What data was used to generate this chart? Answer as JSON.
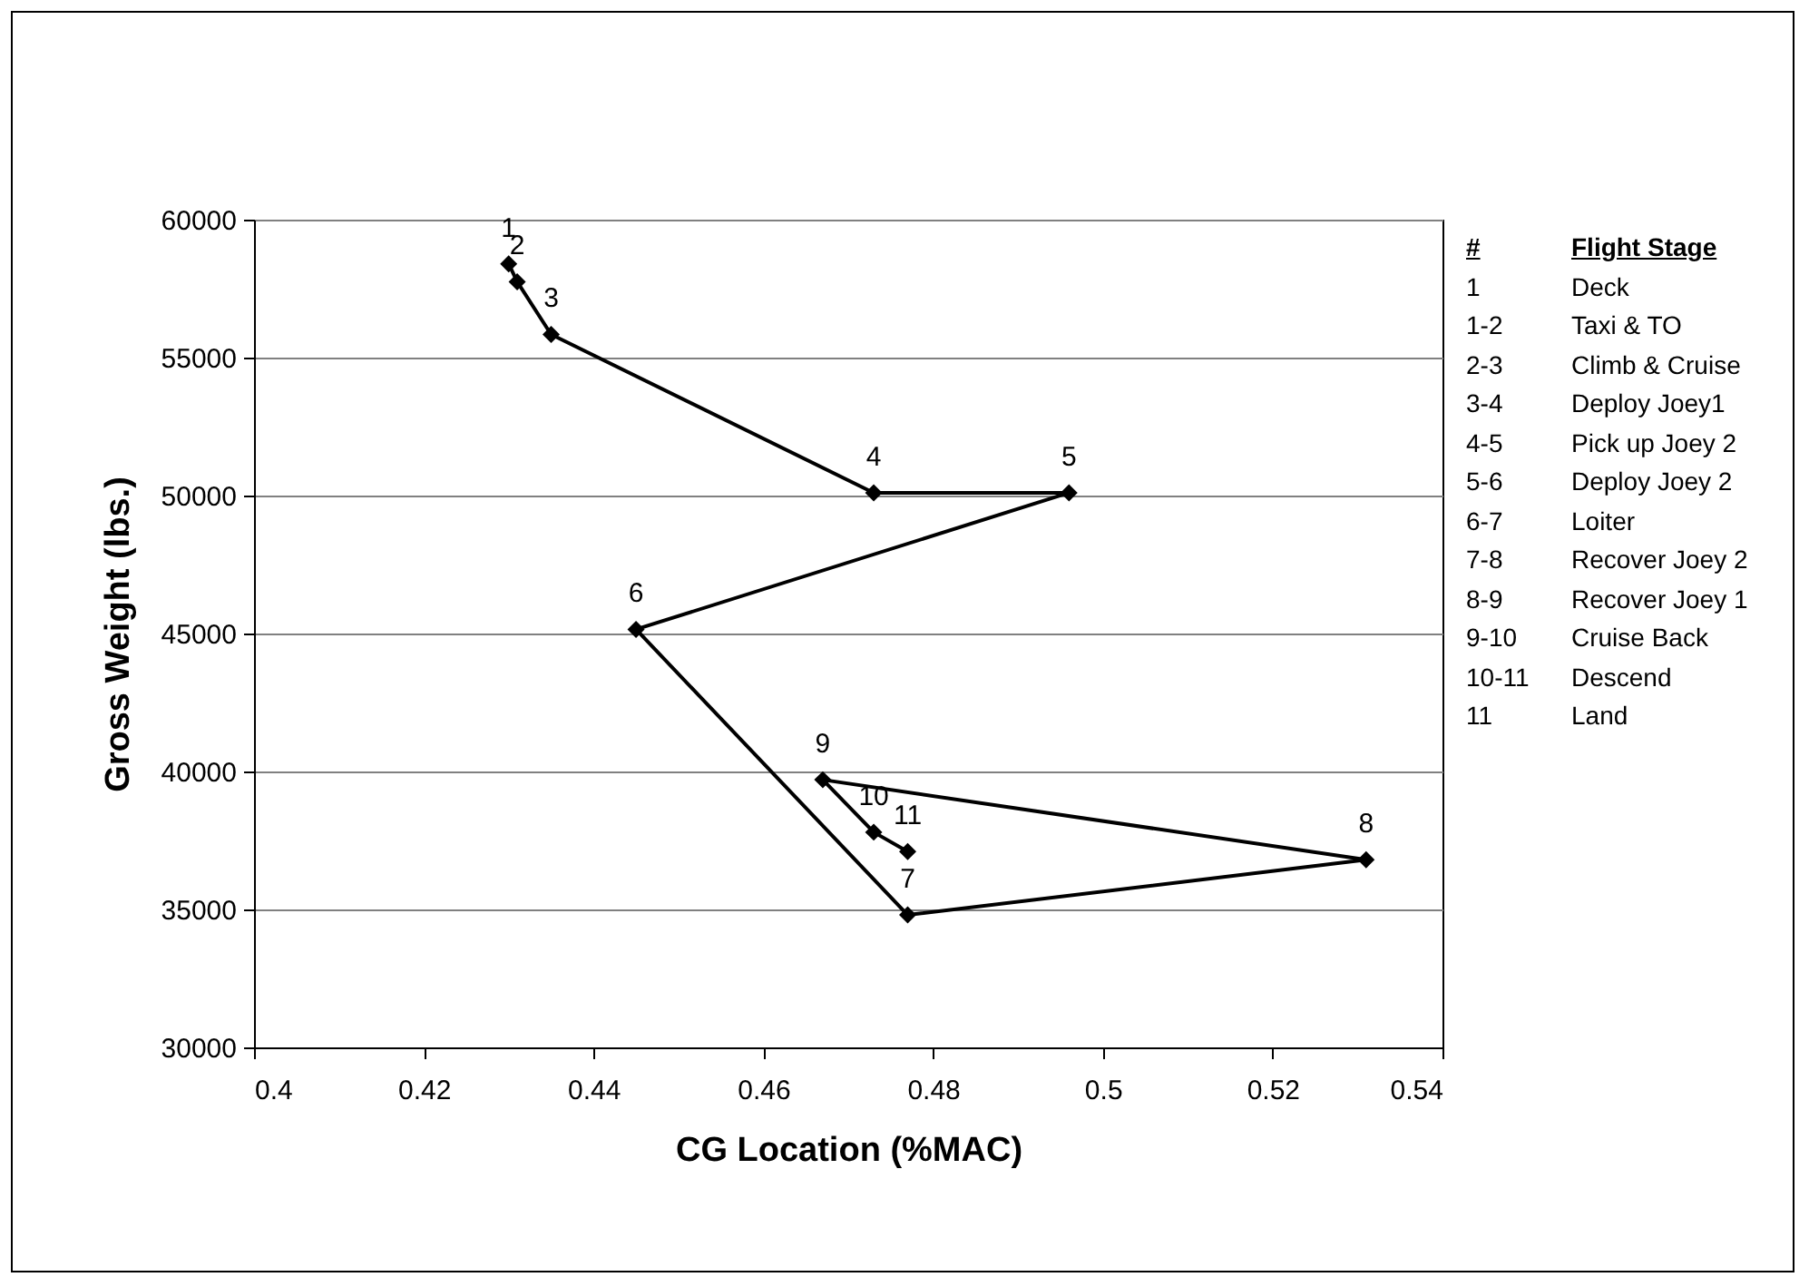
{
  "chart_data": {
    "type": "line",
    "xlabel": "CG Location (%MAC)",
    "ylabel": "Gross Weight (lbs.)",
    "x": [
      0.43,
      0.431,
      0.435,
      0.473,
      0.496,
      0.445,
      0.477,
      0.531,
      0.467,
      0.473,
      0.477
    ],
    "series": [
      {
        "color": "#000000",
        "values": [
          58400,
          57750,
          55840,
          50100,
          50100,
          45150,
          34800,
          36800,
          39700,
          37800,
          37100
        ]
      }
    ],
    "marker": "diamond",
    "line_style": "solid",
    "grid": "y",
    "legend": false,
    "xlim": [
      0.4,
      0.54
    ],
    "xticks": [
      0.4,
      0.42,
      0.44,
      0.46,
      0.48,
      0.5,
      0.52,
      0.54
    ],
    "ylim": [
      30000,
      60000
    ],
    "yticks": [
      30000,
      35000,
      40000,
      45000,
      50000,
      55000,
      60000
    ],
    "annotations": [
      {
        "text": "1",
        "x": 0.43,
        "y": 58400
      },
      {
        "text": "2",
        "x": 0.431,
        "y": 57750
      },
      {
        "text": "3",
        "x": 0.435,
        "y": 55840
      },
      {
        "text": "4",
        "x": 0.473,
        "y": 50100
      },
      {
        "text": "5",
        "x": 0.496,
        "y": 50100
      },
      {
        "text": "6",
        "x": 0.445,
        "y": 45150
      },
      {
        "text": "7",
        "x": 0.477,
        "y": 34800
      },
      {
        "text": "8",
        "x": 0.531,
        "y": 36800
      },
      {
        "text": "9",
        "x": 0.467,
        "y": 39700
      },
      {
        "text": "10",
        "x": 0.473,
        "y": 37800
      },
      {
        "text": "11",
        "x": 0.477,
        "y": 37100
      },
      "#",
      "Flight Stage",
      "1",
      "Deck",
      "1-2",
      "Taxi & TO",
      "2-3",
      "Climb & Cruise",
      "3-4",
      "Deploy Joey1",
      "4-5",
      "Pick up Joey 2",
      "5-6",
      "Deploy Joey 2",
      "6-7",
      "Loiter",
      "7-8",
      "Recover Joey 2",
      "8-9",
      "Recover Joey 1",
      "9-10",
      "Cruise Back",
      "10-11",
      "Descend",
      "11",
      "Land"
    ]
  }
}
